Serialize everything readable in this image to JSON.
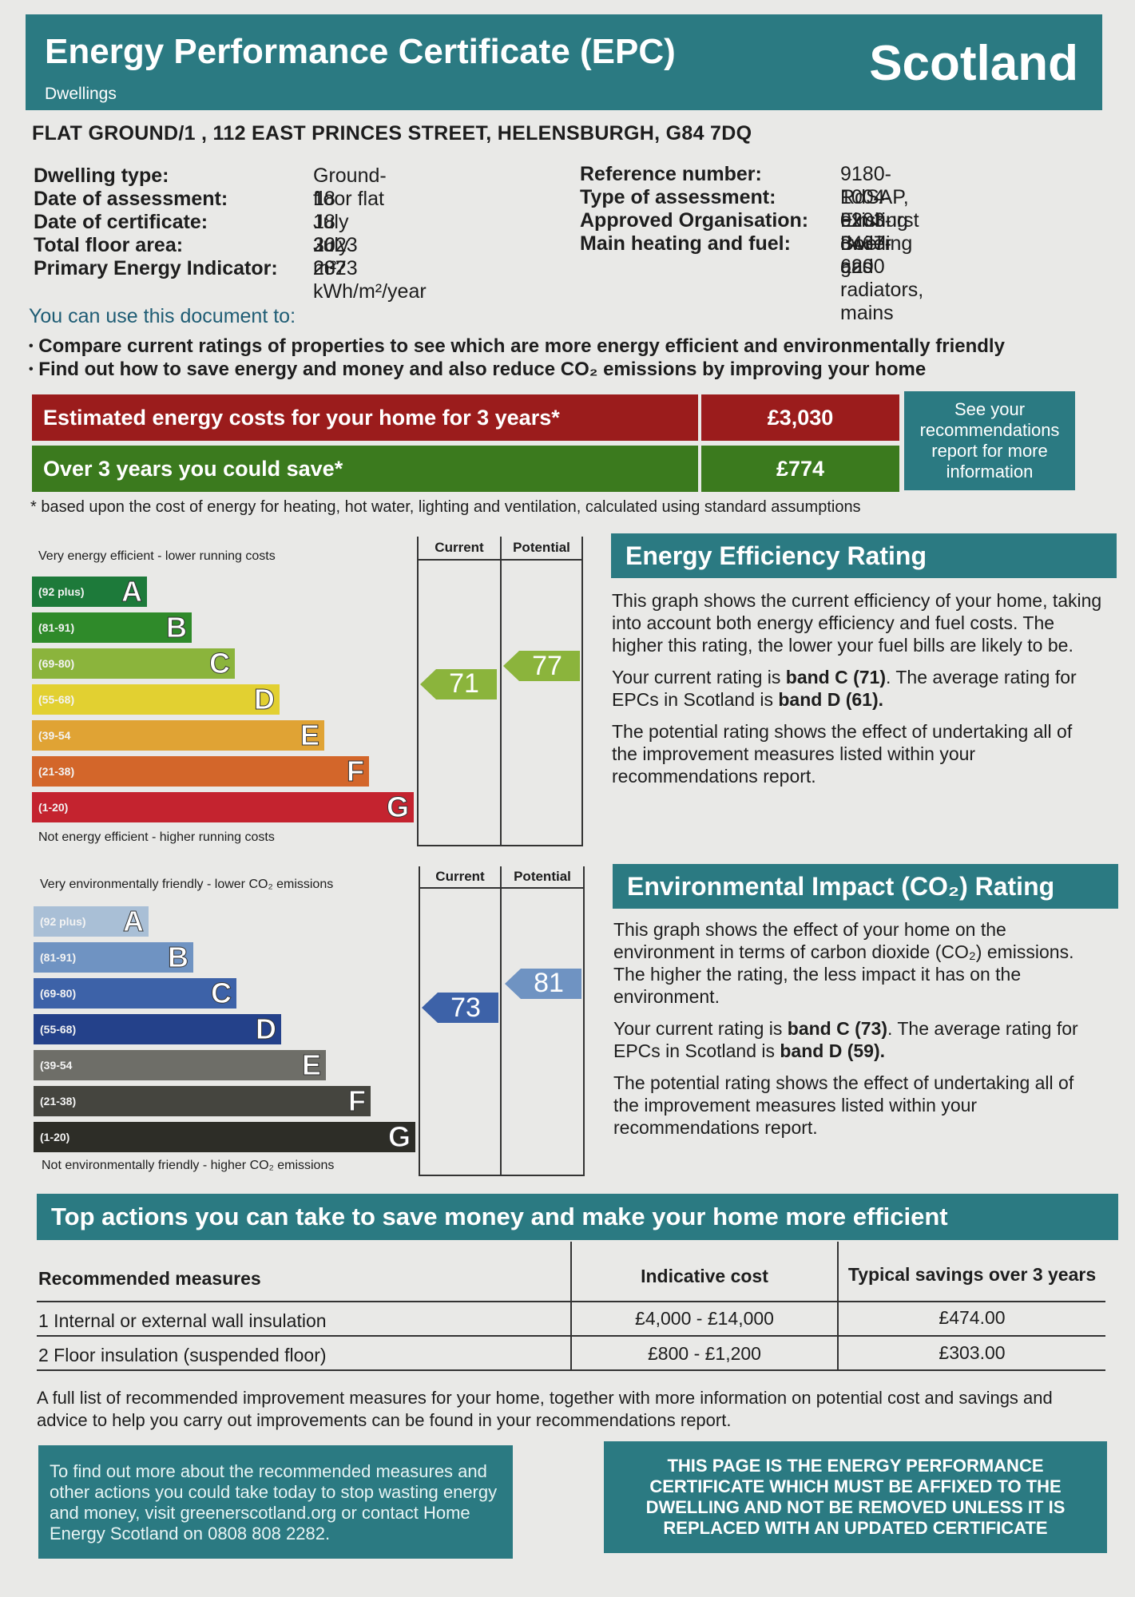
{
  "header": {
    "title": "Energy Performance Certificate (EPC)",
    "subtitle": "Dwellings",
    "country": "Scotland"
  },
  "address": "FLAT GROUND/1 , 112 EAST PRINCES STREET, HELENSBURGH, G84 7DQ",
  "details_left": [
    {
      "label": "Dwelling type:",
      "value": "Ground-floor flat"
    },
    {
      "label": "Date of assessment:",
      "value": "18 July 2023"
    },
    {
      "label": "Date of certificate:",
      "value": "18 July 2023"
    },
    {
      "label": "Total floor area:",
      "value": "36 m²"
    },
    {
      "label": "Primary Energy Indicator:",
      "value": "287 kWh/m²/year"
    }
  ],
  "details_right": [
    {
      "label": "Reference number:",
      "value": "9180-1004-0203-3467-6200"
    },
    {
      "label": "Type of assessment:",
      "value": "RdSAP, existing dwelling"
    },
    {
      "label": "Approved Organisation:",
      "value": "Elmhurst"
    },
    {
      "label": "Main heating and fuel:",
      "value": "Boiler and radiators, mains"
    },
    {
      "label": "",
      "value": "gas"
    }
  ],
  "use_title": "You can use this document to:",
  "bullets": [
    "Compare current ratings of properties to see which are more energy efficient and environmentally friendly",
    "Find out how to save energy and money and also reduce CO₂ emissions by improving your home"
  ],
  "costs": {
    "estimated_label": "Estimated energy costs for your home for 3 years*",
    "estimated_value": "£3,030",
    "save_label": "Over 3 years you could save*",
    "save_value": "£774",
    "see_recs": "See your recommendations report for more information",
    "note": "* based upon the cost of energy for heating, hot water, lighting and ventilation, calculated using standard assumptions"
  },
  "colors": {
    "teal": "#2b7a82",
    "red": "#9b1c1c",
    "green": "#3b7a1e"
  },
  "eer_chart": {
    "top_text": "Very energy efficient - lower running costs",
    "bottom_text": "Not energy efficient - higher running costs",
    "col_current": "Current",
    "col_potential": "Potential",
    "bands": [
      {
        "range": "(92 plus)",
        "letter": "A",
        "color": "#1d7a3a"
      },
      {
        "range": "(81-91)",
        "letter": "B",
        "color": "#2f8a2a"
      },
      {
        "range": "(69-80)",
        "letter": "C",
        "color": "#8bb43c"
      },
      {
        "range": "(55-68)",
        "letter": "D",
        "color": "#e2d031"
      },
      {
        "range": "(39-54",
        "letter": "E",
        "color": "#e0a334"
      },
      {
        "range": "(21-38)",
        "letter": "F",
        "color": "#d3662a"
      },
      {
        "range": "(1-20)",
        "letter": "G",
        "color": "#c4232f"
      }
    ],
    "current": 71,
    "potential": 77,
    "current_band": "C",
    "potential_band": "C"
  },
  "eir_chart": {
    "top_text": "Very environmentally friendly - lower CO₂ emissions",
    "bottom_text": "Not environmentally friendly - higher CO₂ emissions",
    "col_current": "Current",
    "col_potential": "Potential",
    "bands": [
      {
        "range": "(92 plus)",
        "letter": "A",
        "color": "#a9bfd6"
      },
      {
        "range": "(81-91)",
        "letter": "B",
        "color": "#6f93c2"
      },
      {
        "range": "(69-80)",
        "letter": "C",
        "color": "#3d62a8"
      },
      {
        "range": "(55-68)",
        "letter": "D",
        "color": "#24418a"
      },
      {
        "range": "(39-54",
        "letter": "E",
        "color": "#6e6e68"
      },
      {
        "range": "(21-38)",
        "letter": "F",
        "color": "#45453f"
      },
      {
        "range": "(1-20)",
        "letter": "G",
        "color": "#2d2d27"
      }
    ],
    "current": 73,
    "potential": 81,
    "current_band": "C",
    "potential_band": "B"
  },
  "eer_text": {
    "heading": "Energy Efficiency Rating",
    "p1": "This graph shows the current efficiency of your home, taking into account both energy efficiency and fuel costs. The higher this rating, the lower your fuel bills are likely to be.",
    "p2a": "Your current rating is ",
    "p2b": "band C (71)",
    "p2c": ". The average rating for EPCs in Scotland is ",
    "p2d": "band D (61).",
    "p3": "The potential rating shows the effect of undertaking all of the improvement measures listed within your recommendations report."
  },
  "eir_text": {
    "heading": "Environmental Impact (CO₂) Rating",
    "p1": "This graph shows the effect of your home on the environment in terms of carbon dioxide (CO₂) emissions. The higher the rating, the less impact it has on the environment.",
    "p2a": "Your current rating is ",
    "p2b": "band C (73)",
    "p2c": ". The average rating for EPCs in Scotland is ",
    "p2d": "band D (59).",
    "p3": "The potential rating shows the effect of undertaking all of the improvement measures listed within your recommendations report."
  },
  "actions": {
    "heading": "Top actions you can take to save money and make your home more efficient",
    "col1": "Recommended measures",
    "col2": "Indicative cost",
    "col3": "Typical savings over 3 years",
    "rows": [
      {
        "measure": "1 Internal or external wall insulation",
        "cost": "£4,000 - £14,000",
        "saving": "£474.00"
      },
      {
        "measure": "2 Floor insulation (suspended floor)",
        "cost": "£800 - £1,200",
        "saving": "£303.00"
      }
    ],
    "footnote": "A full list of recommended improvement measures for your home, together with more information on potential cost and savings and advice to help you carry out improvements can be found in your recommendations report."
  },
  "footer": {
    "left": "To find out more about the recommended measures and other actions you could take today to stop wasting energy and money, visit greenerscotland.org or contact Home Energy Scotland on 0808 808 2282.",
    "right": "THIS PAGE IS THE ENERGY PERFORMANCE CERTIFICATE WHICH MUST BE AFFIXED TO THE DWELLING AND NOT BE REMOVED UNLESS IT IS REPLACED WITH AN UPDATED CERTIFICATE"
  }
}
